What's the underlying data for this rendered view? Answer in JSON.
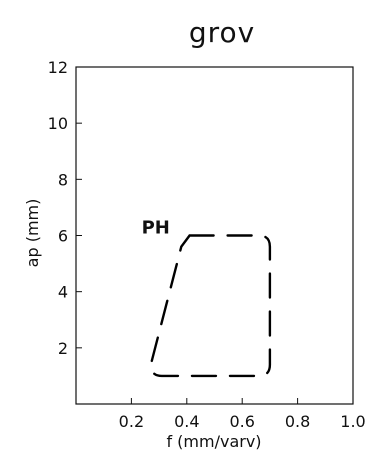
{
  "chart_data": {
    "type": "line",
    "title": "grov",
    "xlabel": "f (mm/varv)",
    "ylabel": "ap (mm)",
    "xlim": [
      0,
      1.0
    ],
    "ylim": [
      0,
      12
    ],
    "x_ticks": [
      0.2,
      0.4,
      0.6,
      0.8,
      1.0
    ],
    "x_tick_labels": [
      "0.2",
      "0.4",
      "0.6",
      "0.8",
      "1.0"
    ],
    "y_ticks": [
      2,
      4,
      6,
      8,
      10,
      12
    ],
    "y_tick_labels": [
      "2",
      "4",
      "6",
      "8",
      "10",
      "12"
    ],
    "grid": false,
    "series": [
      {
        "label": "PH",
        "style": "dashed",
        "closed": true,
        "color": "#000000",
        "x": [
          0.41,
          0.66,
          0.7,
          0.7,
          0.66,
          0.31,
          0.27,
          0.38
        ],
        "y": [
          6.0,
          6.0,
          5.6,
          1.4,
          1.0,
          1.0,
          1.4,
          5.6
        ]
      }
    ]
  }
}
